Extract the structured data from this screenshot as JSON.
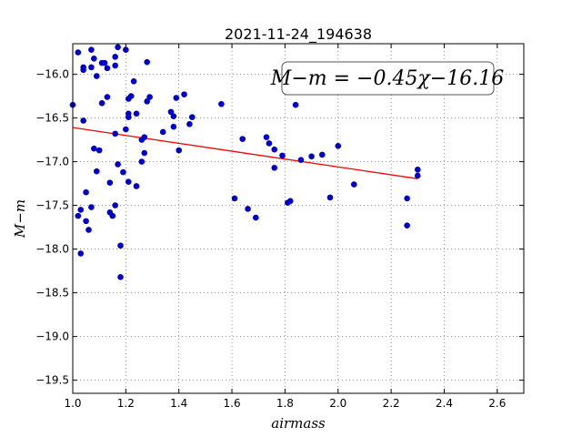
{
  "chart_data": {
    "type": "scatter",
    "title": "2021-11-24_194638",
    "xlabel": "airmass",
    "ylabel": "M−m",
    "xlim": [
      1.0,
      2.7
    ],
    "ylim": [
      -15.65,
      -19.65
    ],
    "x_ticks": [
      "1.0",
      "1.2",
      "1.4",
      "1.6",
      "1.8",
      "2.0",
      "2.2",
      "2.4",
      "2.6"
    ],
    "y_ticks": [
      "−16.0",
      "−16.5",
      "−17.0",
      "−17.5",
      "−18.0",
      "−18.5",
      "−19.0",
      "−19.5"
    ],
    "grid": true,
    "annotation": "M−m = −0.45χ−16.16",
    "fit": {
      "slope": -0.45,
      "intercept": -16.16,
      "x_range": [
        1.0,
        2.3
      ],
      "color": "#ff0000"
    },
    "point_color": "#0000cc",
    "points": [
      [
        1.0,
        -16.35
      ],
      [
        1.02,
        -15.75
      ],
      [
        1.02,
        -17.62
      ],
      [
        1.03,
        -17.55
      ],
      [
        1.03,
        -18.05
      ],
      [
        1.04,
        -16.53
      ],
      [
        1.04,
        -15.92
      ],
      [
        1.04,
        -15.95
      ],
      [
        1.05,
        -17.35
      ],
      [
        1.05,
        -17.68
      ],
      [
        1.06,
        -17.78
      ],
      [
        1.07,
        -15.72
      ],
      [
        1.07,
        -15.92
      ],
      [
        1.07,
        -17.52
      ],
      [
        1.08,
        -15.82
      ],
      [
        1.08,
        -16.85
      ],
      [
        1.09,
        -16.02
      ],
      [
        1.09,
        -17.11
      ],
      [
        1.1,
        -16.87
      ],
      [
        1.11,
        -15.87
      ],
      [
        1.11,
        -16.33
      ],
      [
        1.12,
        -15.87
      ],
      [
        1.13,
        -15.93
      ],
      [
        1.13,
        -16.26
      ],
      [
        1.14,
        -17.24
      ],
      [
        1.14,
        -17.58
      ],
      [
        1.15,
        -17.62
      ],
      [
        1.16,
        -17.5
      ],
      [
        1.16,
        -16.68
      ],
      [
        1.16,
        -15.8
      ],
      [
        1.16,
        -15.9
      ],
      [
        1.17,
        -15.69
      ],
      [
        1.17,
        -17.03
      ],
      [
        1.18,
        -17.96
      ],
      [
        1.18,
        -18.32
      ],
      [
        1.19,
        -17.12
      ],
      [
        1.2,
        -15.72
      ],
      [
        1.2,
        -16.63
      ],
      [
        1.21,
        -16.28
      ],
      [
        1.21,
        -16.45
      ],
      [
        1.21,
        -16.49
      ],
      [
        1.21,
        -17.23
      ],
      [
        1.22,
        -16.25
      ],
      [
        1.23,
        -16.08
      ],
      [
        1.24,
        -16.45
      ],
      [
        1.24,
        -17.28
      ],
      [
        1.26,
        -16.75
      ],
      [
        1.26,
        -17.0
      ],
      [
        1.27,
        -16.9
      ],
      [
        1.27,
        -16.72
      ],
      [
        1.28,
        -15.86
      ],
      [
        1.28,
        -16.31
      ],
      [
        1.29,
        -16.26
      ],
      [
        1.34,
        -16.66
      ],
      [
        1.37,
        -16.43
      ],
      [
        1.38,
        -16.48
      ],
      [
        1.38,
        -16.6
      ],
      [
        1.39,
        -16.27
      ],
      [
        1.4,
        -16.87
      ],
      [
        1.42,
        -16.23
      ],
      [
        1.44,
        -16.57
      ],
      [
        1.45,
        -16.49
      ],
      [
        1.56,
        -16.34
      ],
      [
        1.61,
        -17.42
      ],
      [
        1.64,
        -16.74
      ],
      [
        1.66,
        -17.54
      ],
      [
        1.69,
        -17.64
      ],
      [
        1.73,
        -16.72
      ],
      [
        1.74,
        -16.79
      ],
      [
        1.76,
        -17.07
      ],
      [
        1.76,
        -16.86
      ],
      [
        1.79,
        -16.93
      ],
      [
        1.81,
        -17.47
      ],
      [
        1.82,
        -17.45
      ],
      [
        1.84,
        -16.35
      ],
      [
        1.86,
        -16.98
      ],
      [
        1.9,
        -16.94
      ],
      [
        1.94,
        -16.92
      ],
      [
        1.97,
        -17.41
      ],
      [
        2.0,
        -16.82
      ],
      [
        2.06,
        -17.26
      ],
      [
        2.26,
        -17.42
      ],
      [
        2.26,
        -17.73
      ],
      [
        2.3,
        -17.09
      ],
      [
        2.3,
        -17.16
      ]
    ]
  }
}
